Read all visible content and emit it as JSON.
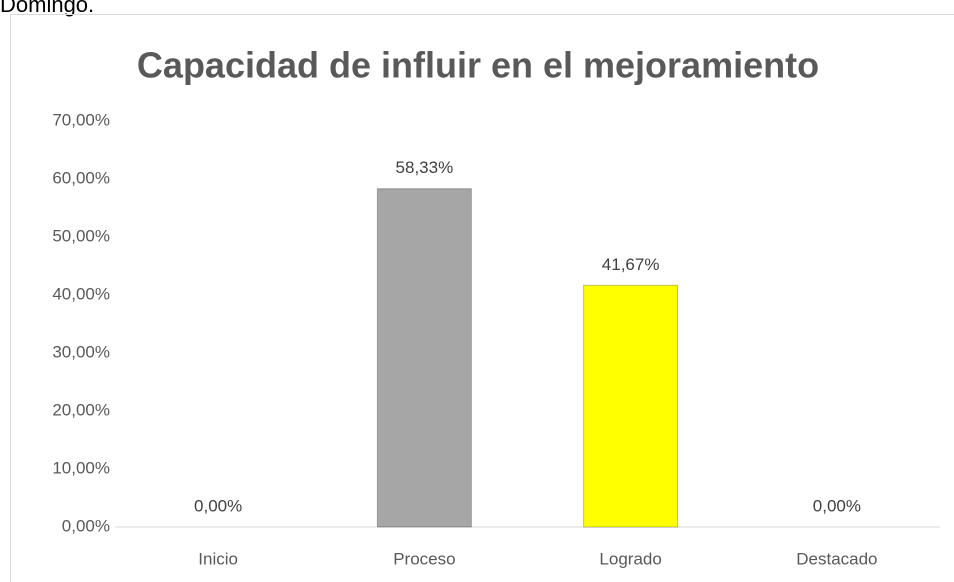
{
  "caption": "Domingo.",
  "chart_data": {
    "type": "bar",
    "title": "Capacidad de influir en el mejoramiento",
    "categories": [
      "Inicio",
      "Proceso",
      "Logrado",
      "Destacado"
    ],
    "values": [
      0,
      58.33,
      41.67,
      0
    ],
    "value_labels": [
      "0,00%",
      "58,33%",
      "41,67%",
      "0,00%"
    ],
    "colors": [
      "#a6a6a6",
      "#a6a6a6",
      "#ffff00",
      "#a6a6a6"
    ],
    "ylim": [
      0,
      70
    ],
    "yticks": [
      {
        "value": 0,
        "label": "0,00%"
      },
      {
        "value": 10,
        "label": "10,00%"
      },
      {
        "value": 20,
        "label": "20,00%"
      },
      {
        "value": 30,
        "label": "30,00%"
      },
      {
        "value": 40,
        "label": "40,00%"
      },
      {
        "value": 50,
        "label": "50,00%"
      },
      {
        "value": 60,
        "label": "60,00%"
      },
      {
        "value": 70,
        "label": "70,00%"
      }
    ],
    "grid": false
  }
}
